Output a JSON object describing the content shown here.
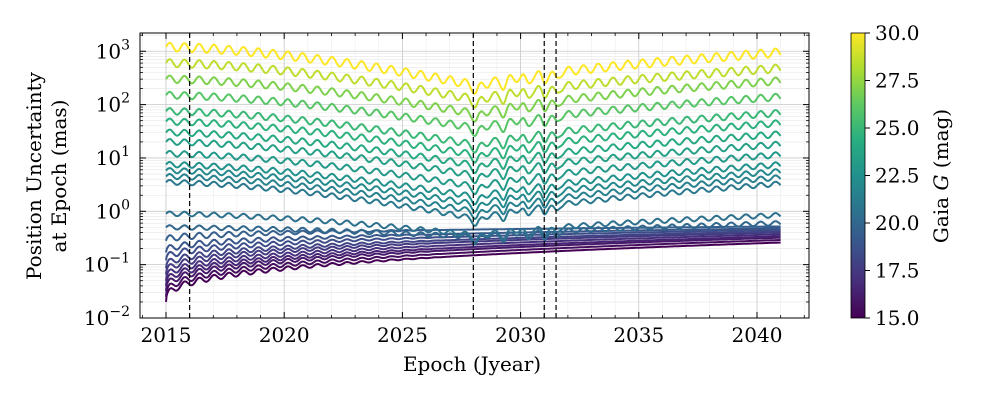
{
  "chart_data": {
    "type": "line",
    "xlabel": "Epoch (Jyear)",
    "ylabel_line1": "Position Uncertainty",
    "ylabel_line2": "at Epoch (mas)",
    "y_scale": "log",
    "xlim": [
      2013.9,
      2042.2
    ],
    "ylim": [
      0.01,
      2200
    ],
    "grid": true,
    "x_ticks": [
      2015,
      2020,
      2025,
      2030,
      2035,
      2040
    ],
    "x_tick_labels": [
      "2015",
      "2020",
      "2025",
      "2030",
      "2035",
      "2040"
    ],
    "y_ticks": [
      0.01,
      0.1,
      1,
      10,
      100,
      1000
    ],
    "y_tick_base": "10",
    "y_tick_exponents": [
      "−2",
      "−1",
      "0",
      "1",
      "2",
      "3"
    ],
    "vlines": [
      2016.0,
      2028.0,
      2031.0,
      2031.5
    ],
    "x_range": [
      2015.0,
      2041.0
    ],
    "colorbar": {
      "label_prefix": "Gaia ",
      "label_var": "G",
      "label_suffix": " (mag)",
      "range": [
        15.0,
        30.0
      ],
      "ticks": [
        15.0,
        17.5,
        20.0,
        22.5,
        25.0,
        27.5,
        30.0
      ],
      "tick_labels": [
        "15.0",
        "17.5",
        "20.0",
        "22.5",
        "25.0",
        "27.5",
        "30.0"
      ],
      "colormap": "viridis"
    },
    "series": [
      {
        "g_mag": 15.0,
        "y_start": 0.02,
        "y_2028": 0.15,
        "y_end": 0.26
      },
      {
        "g_mag": 15.5,
        "y_start": 0.025,
        "y_2028": 0.17,
        "y_end": 0.29
      },
      {
        "g_mag": 16.0,
        "y_start": 0.032,
        "y_2028": 0.19,
        "y_end": 0.32
      },
      {
        "g_mag": 16.5,
        "y_start": 0.04,
        "y_2028": 0.21,
        "y_end": 0.34
      },
      {
        "g_mag": 17.0,
        "y_start": 0.05,
        "y_2028": 0.22,
        "y_end": 0.37
      },
      {
        "g_mag": 17.5,
        "y_start": 0.065,
        "y_2028": 0.24,
        "y_end": 0.4
      },
      {
        "g_mag": 18.0,
        "y_start": 0.085,
        "y_2028": 0.26,
        "y_end": 0.42
      },
      {
        "g_mag": 18.5,
        "y_start": 0.12,
        "y_2028": 0.28,
        "y_end": 0.45
      },
      {
        "g_mag": 19.0,
        "y_start": 0.17,
        "y_2028": 0.3,
        "y_end": 0.48
      },
      {
        "g_mag": 19.5,
        "y_start": 0.28,
        "y_2028": 0.32,
        "y_end": 0.52
      },
      {
        "g_mag": 20.0,
        "y_start": 0.5,
        "y_2028": 0.33,
        "y_end": 0.6
      },
      {
        "g_mag": 20.5,
        "y_start": 0.9,
        "y_2028": 0.35,
        "y_end": 0.85
      },
      {
        "g_mag": 21.0,
        "y_start": 3.5,
        "y_2028": 0.7,
        "y_end": 3.3
      },
      {
        "g_mag": 21.5,
        "y_start": 4.5,
        "y_2028": 0.95,
        "y_end": 4.3
      },
      {
        "g_mag": 22.0,
        "y_start": 5.8,
        "y_2028": 1.3,
        "y_end": 5.6
      },
      {
        "g_mag": 22.5,
        "y_start": 7.5,
        "y_2028": 1.8,
        "y_end": 7.5
      },
      {
        "g_mag": 23.0,
        "y_start": 12,
        "y_2028": 2.8,
        "y_end": 11.5
      },
      {
        "g_mag": 23.5,
        "y_start": 20,
        "y_2028": 4.5,
        "y_end": 18
      },
      {
        "g_mag": 24.0,
        "y_start": 30,
        "y_2028": 7,
        "y_end": 28
      },
      {
        "g_mag": 24.5,
        "y_start": 48,
        "y_2028": 11,
        "y_end": 45
      },
      {
        "g_mag": 25.0,
        "y_start": 75,
        "y_2028": 17,
        "y_end": 70
      },
      {
        "g_mag": 26.0,
        "y_start": 150,
        "y_2028": 35,
        "y_end": 140
      },
      {
        "g_mag": 27.0,
        "y_start": 300,
        "y_2028": 65,
        "y_end": 280
      },
      {
        "g_mag": 28.5,
        "y_start": 600,
        "y_2028": 120,
        "y_end": 480
      },
      {
        "g_mag": 30.0,
        "y_start": 1200,
        "y_2028": 220,
        "y_end": 950
      }
    ]
  }
}
